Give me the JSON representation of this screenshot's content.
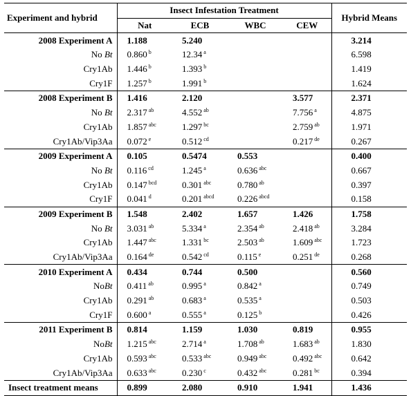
{
  "header": {
    "experiment_hybrid": "Experiment and hybrid",
    "treatment_group": "Insect Infestation Treatment",
    "hybrid_means": "Hybrid Means",
    "columns": [
      "Nat",
      "ECB",
      "WBC",
      "CEW"
    ]
  },
  "groups": [
    {
      "title": "2008 Experiment A",
      "summary": {
        "nat": "1.188",
        "ecb": "5.240",
        "wbc": "",
        "cew": "",
        "mean": "3.214"
      },
      "rows": [
        {
          "pre": "No ",
          "it": "Bt",
          "post": "",
          "nat": "0.860",
          "nat_sup": "b",
          "ecb": "12.34",
          "ecb_sup": "a",
          "wbc": "",
          "wbc_sup": "",
          "cew": "",
          "cew_sup": "",
          "mean": "6.598"
        },
        {
          "pre": "Cry1Ab",
          "it": "",
          "post": "",
          "nat": "1.446",
          "nat_sup": "b",
          "ecb": "1.393",
          "ecb_sup": "b",
          "wbc": "",
          "wbc_sup": "",
          "cew": "",
          "cew_sup": "",
          "mean": "1.419"
        },
        {
          "pre": "Cry1F",
          "it": "",
          "post": "",
          "nat": "1.257",
          "nat_sup": "b",
          "ecb": "1.991",
          "ecb_sup": "b",
          "wbc": "",
          "wbc_sup": "",
          "cew": "",
          "cew_sup": "",
          "mean": "1.624"
        }
      ]
    },
    {
      "title": "2008 Experiment B",
      "summary": {
        "nat": "1.416",
        "ecb": "2.120",
        "wbc": "",
        "cew": "3.577",
        "mean": "2.371"
      },
      "rows": [
        {
          "pre": "No ",
          "it": "Bt",
          "post": "",
          "nat": "2.317",
          "nat_sup": "ab",
          "ecb": "4.552",
          "ecb_sup": "ab",
          "wbc": "",
          "wbc_sup": "",
          "cew": "7.756",
          "cew_sup": "a",
          "mean": "4.875"
        },
        {
          "pre": "Cry1Ab",
          "it": "",
          "post": "",
          "nat": "1.857",
          "nat_sup": "abc",
          "ecb": "1.297",
          "ecb_sup": "bc",
          "wbc": "",
          "wbc_sup": "",
          "cew": "2.759",
          "cew_sup": "ab",
          "mean": "1.971"
        },
        {
          "pre": "Cry1Ab/Vip3Aa",
          "it": "",
          "post": "",
          "nat": "0.072",
          "nat_sup": "e",
          "ecb": "0.512",
          "ecb_sup": "cd",
          "wbc": "",
          "wbc_sup": "",
          "cew": "0.217",
          "cew_sup": "de",
          "mean": "0.267"
        }
      ]
    },
    {
      "title": "2009 Experiment A",
      "summary": {
        "nat": "0.105",
        "ecb": "0.5474",
        "wbc": "0.553",
        "cew": "",
        "mean": "0.400"
      },
      "rows": [
        {
          "pre": "No ",
          "it": "Bt",
          "post": "",
          "nat": "0.116",
          "nat_sup": "cd",
          "ecb": "1.245",
          "ecb_sup": "a",
          "wbc": "0.636",
          "wbc_sup": "abc",
          "cew": "",
          "cew_sup": "",
          "mean": "0.667"
        },
        {
          "pre": "Cry1Ab",
          "it": "",
          "post": "",
          "nat": "0.147",
          "nat_sup": "bcd",
          "ecb": "0.301",
          "ecb_sup": "abc",
          "wbc": "0.780",
          "wbc_sup": "ab",
          "cew": "",
          "cew_sup": "",
          "mean": "0.397"
        },
        {
          "pre": "Cry1F",
          "it": "",
          "post": "",
          "nat": "0.041",
          "nat_sup": "d",
          "ecb": "0.201",
          "ecb_sup": "abcd",
          "wbc": "0.226",
          "wbc_sup": "abcd",
          "cew": "",
          "cew_sup": "",
          "mean": "0.158"
        }
      ]
    },
    {
      "title": "2009 Experiment B",
      "summary": {
        "nat": "1.548",
        "ecb": "2.402",
        "wbc": "1.657",
        "cew": "1.426",
        "mean": "1.758"
      },
      "rows": [
        {
          "pre": "No ",
          "it": "Bt",
          "post": "",
          "nat": "3.031",
          "nat_sup": "ab",
          "ecb": "5.334",
          "ecb_sup": "a",
          "wbc": "2.354",
          "wbc_sup": "ab",
          "cew": "2.418",
          "cew_sup": "ab",
          "mean": "3.284"
        },
        {
          "pre": "Cry1Ab",
          "it": "",
          "post": "",
          "nat": "1.447",
          "nat_sup": "abc",
          "ecb": "1.331",
          "ecb_sup": "bc",
          "wbc": "2.503",
          "wbc_sup": "ab",
          "cew": "1.609",
          "cew_sup": "abc",
          "mean": "1.723"
        },
        {
          "pre": "Cry1Ab/Vip3Aa",
          "it": "",
          "post": "",
          "nat": "0.164",
          "nat_sup": "de",
          "ecb": "0.542",
          "ecb_sup": "cd",
          "wbc": "0.115",
          "wbc_sup": "e",
          "cew": "0.251",
          "cew_sup": "de",
          "mean": "0.268"
        }
      ]
    },
    {
      "title": "2010 Experiment A",
      "summary": {
        "nat": "0.434",
        "ecb": "0.744",
        "wbc": "0.500",
        "cew": "",
        "mean": "0.560"
      },
      "rows": [
        {
          "pre": "No",
          "it": "Bt",
          "post": "",
          "nat": "0.411",
          "nat_sup": "ab",
          "ecb": "0.995",
          "ecb_sup": "a",
          "wbc": "0.842",
          "wbc_sup": "a",
          "cew": "",
          "cew_sup": "",
          "mean": "0.749"
        },
        {
          "pre": "Cry1Ab",
          "it": "",
          "post": "",
          "nat": "0.291",
          "nat_sup": "ab",
          "ecb": "0.683",
          "ecb_sup": "a",
          "wbc": "0.535",
          "wbc_sup": "a",
          "cew": "",
          "cew_sup": "",
          "mean": "0.503"
        },
        {
          "pre": "Cry1F",
          "it": "",
          "post": "",
          "nat": "0.600",
          "nat_sup": "a",
          "ecb": "0.555",
          "ecb_sup": "a",
          "wbc": "0.125",
          "wbc_sup": "b",
          "cew": "",
          "cew_sup": "",
          "mean": "0.426"
        }
      ]
    },
    {
      "title": "2011 Experiment B",
      "summary": {
        "nat": "0.814",
        "ecb": "1.159",
        "wbc": "1.030",
        "cew": "0.819",
        "mean": "0.955"
      },
      "rows": [
        {
          "pre": "No",
          "it": "Bt",
          "post": "",
          "nat": "1.215",
          "nat_sup": "abc",
          "ecb": "2.714",
          "ecb_sup": "a",
          "wbc": "1.708",
          "wbc_sup": "ab",
          "cew": "1.683",
          "cew_sup": "ab",
          "mean": "1.830"
        },
        {
          "pre": "Cry1Ab",
          "it": "",
          "post": "",
          "nat": "0.593",
          "nat_sup": "abc",
          "ecb": "0.533",
          "ecb_sup": "abc",
          "wbc": "0.949",
          "wbc_sup": "abc",
          "cew": "0.492",
          "cew_sup": "abc",
          "mean": "0.642"
        },
        {
          "pre": "Cry1Ab/Vip3Aa",
          "it": "",
          "post": "",
          "nat": "0.633",
          "nat_sup": "abc",
          "ecb": "0.230",
          "ecb_sup": "c",
          "wbc": "0.432",
          "wbc_sup": "abc",
          "cew": "0.281",
          "cew_sup": "bc",
          "mean": "0.394"
        }
      ]
    }
  ],
  "footer": {
    "label": "Insect treatment means",
    "nat": "0.899",
    "ecb": "2.080",
    "wbc": "0.910",
    "cew": "1.941",
    "mean": "1.436"
  }
}
